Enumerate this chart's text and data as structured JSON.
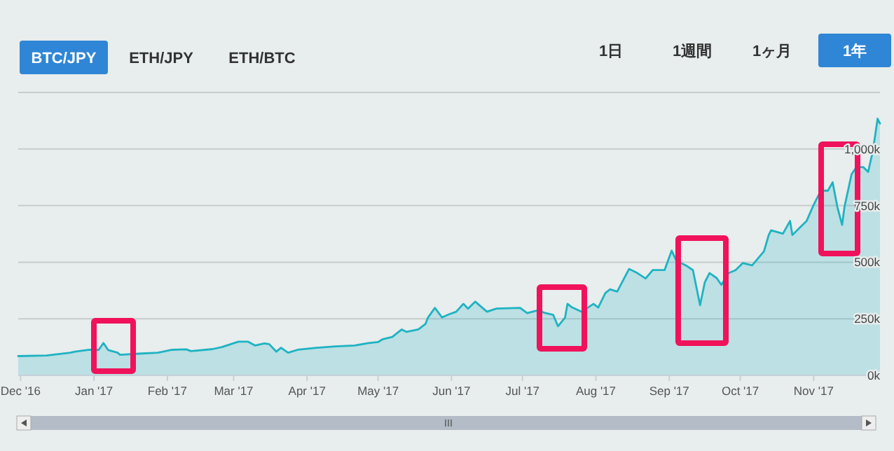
{
  "chart_data": {
    "type": "area",
    "annotations": [
      "BTC/JPY",
      "ETH/JPY",
      "ETH/BTC",
      "1日",
      "1週間",
      "1ヶ月",
      "1年"
    ],
    "x": [
      "2016-11-30",
      "2016-12-12",
      "2016-12-22",
      "2016-12-24",
      "2016-12-30",
      "2017-01-03",
      "2017-01-05",
      "2017-01-07",
      "2017-01-11",
      "2017-01-12",
      "2017-01-20",
      "2017-01-28",
      "2017-02-03",
      "2017-02-09",
      "2017-02-11",
      "2017-02-20",
      "2017-02-24",
      "2017-03-03",
      "2017-03-07",
      "2017-03-10",
      "2017-03-14",
      "2017-03-16",
      "2017-03-19",
      "2017-03-21",
      "2017-03-24",
      "2017-03-28",
      "2017-04-05",
      "2017-04-13",
      "2017-04-21",
      "2017-04-27",
      "2017-05-01",
      "2017-05-03",
      "2017-05-07",
      "2017-05-11",
      "2017-05-13",
      "2017-05-18",
      "2017-05-21",
      "2017-05-22",
      "2017-05-25",
      "2017-05-28",
      "2017-05-31",
      "2017-06-03",
      "2017-06-06",
      "2017-06-08",
      "2017-06-11",
      "2017-06-16",
      "2017-06-20",
      "2017-06-30",
      "2017-07-03",
      "2017-07-08",
      "2017-07-10",
      "2017-07-14",
      "2017-07-16",
      "2017-07-19",
      "2017-07-20",
      "2017-07-22",
      "2017-07-26",
      "2017-07-31",
      "2017-08-02",
      "2017-08-05",
      "2017-08-07",
      "2017-08-10",
      "2017-08-15",
      "2017-08-18",
      "2017-08-22",
      "2017-08-25",
      "2017-08-30",
      "2017-09-02",
      "2017-09-04",
      "2017-09-08",
      "2017-09-11",
      "2017-09-14",
      "2017-09-16",
      "2017-09-18",
      "2017-09-21",
      "2017-09-23",
      "2017-09-26",
      "2017-09-29",
      "2017-10-02",
      "2017-10-06",
      "2017-10-11",
      "2017-10-13",
      "2017-10-14",
      "2017-10-19",
      "2017-10-22",
      "2017-10-23",
      "2017-10-26",
      "2017-10-29",
      "2017-11-01",
      "2017-11-04",
      "2017-11-07",
      "2017-11-09",
      "2017-11-11",
      "2017-11-13",
      "2017-11-14",
      "2017-11-17",
      "2017-11-19",
      "2017-11-22",
      "2017-11-24",
      "2017-11-26",
      "2017-11-28",
      "2017-11-29"
    ],
    "series": [
      {
        "color": "#1fb3c2",
        "values": [
          85000,
          88000,
          100000,
          105000,
          113000,
          113000,
          143000,
          112000,
          100000,
          91000,
          96000,
          100000,
          113000,
          115000,
          107000,
          116000,
          125000,
          149000,
          149000,
          132000,
          141000,
          138000,
          105000,
          122000,
          100000,
          113000,
          122000,
          128000,
          132000,
          143000,
          147000,
          160000,
          170000,
          203000,
          192000,
          203000,
          227000,
          254000,
          298000,
          256000,
          270000,
          281000,
          316000,
          295000,
          326000,
          281000,
          295000,
          298000,
          275000,
          289000,
          277000,
          267000,
          217000,
          256000,
          316000,
          300000,
          281000,
          316000,
          300000,
          364000,
          380000,
          370000,
          470000,
          455000,
          428000,
          465000,
          465000,
          551000,
          506000,
          486000,
          465000,
          310000,
          411000,
          452000,
          430000,
          400000,
          452000,
          465000,
          496000,
          486000,
          548000,
          620000,
          641000,
          626000,
          682000,
          620000,
          651000,
          682000,
          754000,
          816000,
          816000,
          853000,
          744000,
          665000,
          744000,
          889000,
          920000,
          920000,
          899000,
          992000,
          1134000,
          1113000
        ]
      }
    ],
    "xlim": [
      "2016-11-30",
      "2017-11-29"
    ],
    "xticks": [
      {
        "value": "2016-12-01",
        "label": "Dec '16"
      },
      {
        "value": "2017-01-01",
        "label": "Jan '17"
      },
      {
        "value": "2017-02-01",
        "label": "Feb '17"
      },
      {
        "value": "2017-03-01",
        "label": "Mar '17"
      },
      {
        "value": "2017-04-01",
        "label": "Apr '17"
      },
      {
        "value": "2017-05-01",
        "label": "May '17"
      },
      {
        "value": "2017-06-01",
        "label": "Jun '17"
      },
      {
        "value": "2017-07-01",
        "label": "Jul '17"
      },
      {
        "value": "2017-08-01",
        "label": "Aug '17"
      },
      {
        "value": "2017-09-01",
        "label": "Sep '17"
      },
      {
        "value": "2017-10-01",
        "label": "Oct '17"
      },
      {
        "value": "2017-11-01",
        "label": "Nov '17"
      }
    ],
    "ylim": [
      0,
      1250000
    ],
    "yticks": [
      {
        "value": 0,
        "label": "0k"
      },
      {
        "value": 250000,
        "label": "250k"
      },
      {
        "value": 500000,
        "label": "500k"
      },
      {
        "value": 750000,
        "label": "750k"
      },
      {
        "value": 1000000,
        "label": "1,000k"
      },
      {
        "value": 1250000,
        "label": null
      }
    ],
    "grid": "y"
  }
}
